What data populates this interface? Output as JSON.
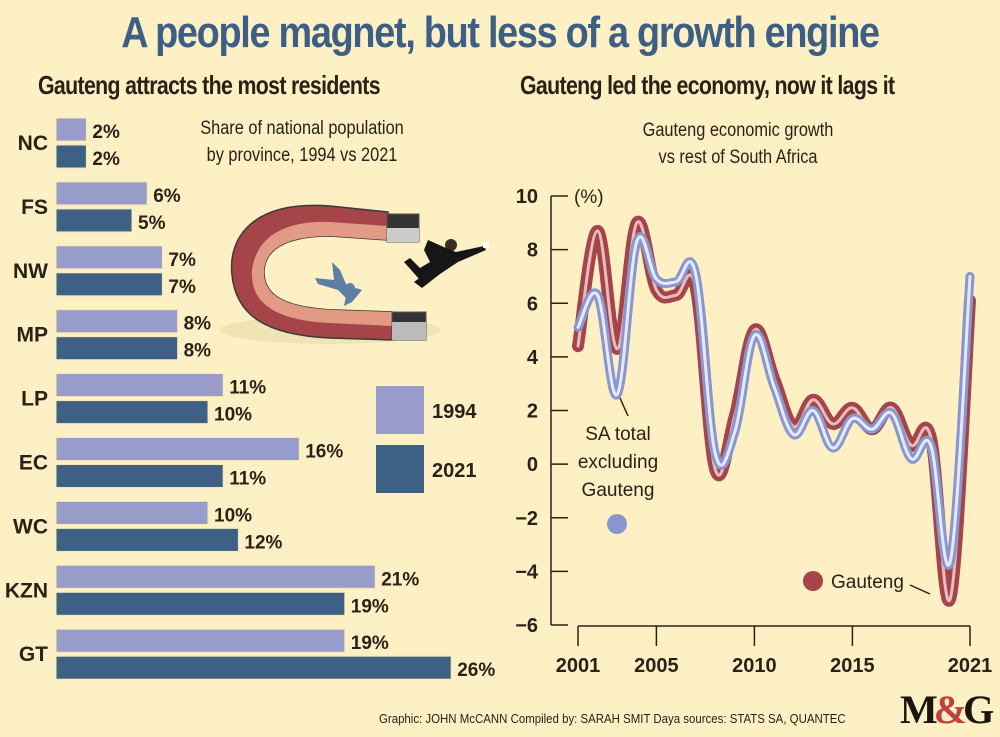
{
  "title": "A people magnet, but less of a growth engine",
  "left_panel": {
    "subtitle": "Gauteng attracts the most residents",
    "caption_line1": "Share of national population",
    "caption_line2": "by province, 1994 vs 2021"
  },
  "right_panel": {
    "subtitle": "Gauteng led the economy, now it lags it",
    "caption_line1": "Gauteng economic growth",
    "caption_line2": "vs rest of South Africa"
  },
  "credits": "Graphic: JOHN McCANN  Compiled by: SARAH SMIT  Daya sources: STATS SA, QUANTEC",
  "logo": {
    "left": "M",
    "amp": "&",
    "right": "G"
  },
  "illustration": {
    "icon": "magnet-attracting-people-icon"
  },
  "colors": {
    "background": "#FDF0C4",
    "title": "#3E5F85",
    "bar_1994": "#979CCB",
    "bar_2021": "#3F6085",
    "gauteng_line": "#A5454A",
    "gauteng_inner": "#E6BDBD",
    "sa_line": "#8A96D0",
    "sa_inner": "#E6EAF8",
    "text": "#2A2218"
  },
  "chart_data": [
    {
      "type": "bar",
      "orientation": "horizontal",
      "title": "Share of national population by province, 1994 vs 2021",
      "categories": [
        "NC",
        "FS",
        "NW",
        "MP",
        "LP",
        "EC",
        "WC",
        "KZN",
        "GT"
      ],
      "series": [
        {
          "name": "1994",
          "values": [
            2,
            6,
            7,
            8,
            11,
            16,
            10,
            21,
            19
          ],
          "labels": [
            "2%",
            "6%",
            "7%",
            "8%",
            "11%",
            "16%",
            "10%",
            "21%",
            "19%"
          ]
        },
        {
          "name": "2021",
          "values": [
            2,
            5,
            7,
            8,
            10,
            11,
            12,
            19,
            26
          ],
          "labels": [
            "2%",
            "5%",
            "7%",
            "8%",
            "10%",
            "11%",
            "12%",
            "19%",
            "26%"
          ]
        }
      ],
      "unit": "%",
      "legend": [
        "1994",
        "2021"
      ],
      "legend_position": "right"
    },
    {
      "type": "line",
      "title": "Gauteng economic growth vs rest of South Africa",
      "ylabel": "(%)",
      "ylim": [
        -6,
        10
      ],
      "yticks": [
        10,
        8,
        6,
        4,
        2,
        0,
        -2,
        -4,
        -6
      ],
      "yticks_labels": [
        "10",
        "8",
        "6",
        "4",
        "2",
        "0",
        "−2",
        "−4",
        "−6"
      ],
      "xlim": [
        2001,
        2021
      ],
      "xticks": [
        2001,
        2005,
        2010,
        2015,
        2021
      ],
      "xticks_labels": [
        "2001",
        "2005",
        "2010",
        "2015",
        "2021"
      ],
      "x": [
        2001,
        2002,
        2003,
        2004,
        2005,
        2006,
        2007,
        2008,
        2009,
        2010,
        2011,
        2012,
        2013,
        2014,
        2015,
        2016,
        2017,
        2018,
        2019,
        2020,
        2021
      ],
      "series": [
        {
          "name": "Gauteng",
          "values": [
            4.4,
            8.7,
            4.3,
            9.0,
            6.5,
            6.3,
            6.6,
            -0.2,
            1.8,
            5.0,
            3.2,
            1.4,
            2.4,
            1.5,
            2.1,
            1.3,
            2.1,
            0.7,
            1.0,
            -5.0,
            6.1
          ]
        },
        {
          "name": "SA total excluding Gauteng",
          "values": [
            5.1,
            6.3,
            2.6,
            8.3,
            6.9,
            6.8,
            7.1,
            0.4,
            1.2,
            4.8,
            2.9,
            1.1,
            2.0,
            0.6,
            1.7,
            1.3,
            1.9,
            0.2,
            0.7,
            -3.6,
            7.0
          ]
        }
      ],
      "annotations": {
        "sa_label_lines": [
          "SA total",
          "excluding",
          "Gauteng"
        ],
        "gauteng_label": "Gauteng"
      }
    }
  ]
}
